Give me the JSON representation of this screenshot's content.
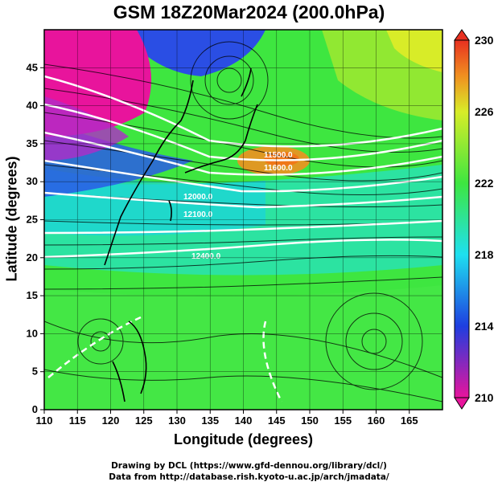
{
  "title": "GSM 18Z20Mar2024 (200.0hPa)",
  "x_axis_title": "Longitude (degrees)",
  "y_axis_title": "Latitude  (degrees)",
  "credits": {
    "line1": "Drawing by DCL (https://www.gfd-dennou.org/library/dcl/)",
    "line2": "Data from http://database.rish.kyoto-u.ac.jp/arch/jmadata/"
  },
  "map": {
    "lon_range": [
      110,
      170
    ],
    "lat_range": [
      0,
      50
    ],
    "lon_ticks": [
      "110",
      "115",
      "120",
      "125",
      "130",
      "135",
      "140",
      "145",
      "150",
      "155",
      "160",
      "165"
    ],
    "lat_ticks": [
      "0",
      "5",
      "10",
      "15",
      "20",
      "25",
      "30",
      "35",
      "40",
      "45"
    ],
    "shaded_field_range": [
      210,
      230
    ],
    "colorbar_labels": [
      "230",
      "226",
      "222",
      "218",
      "214",
      "210"
    ],
    "colors": {
      "magenta": "#e8149c",
      "blue": "#1e3ee0",
      "cyan": "#1ee0f0",
      "green": "#3ee640",
      "yellow": "#d8ec28",
      "orange": "#f09020",
      "red": "#e83020"
    },
    "contour_labels": [
      "11500.0",
      "11600.0",
      "12000.0",
      "12100.0",
      "12400.0"
    ]
  }
}
